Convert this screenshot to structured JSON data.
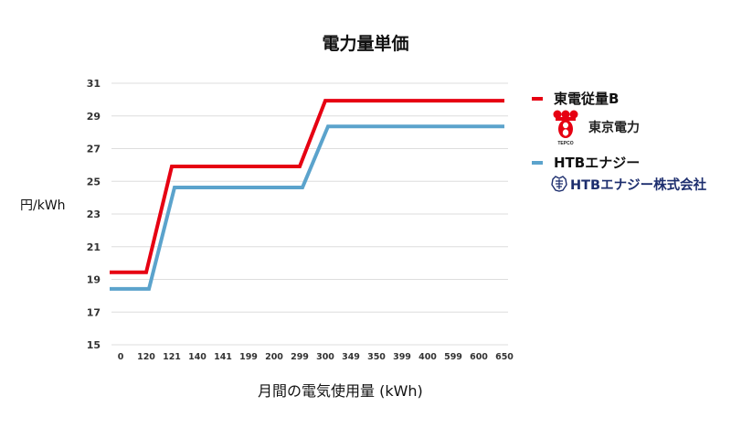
{
  "title": "電力量単価",
  "axes": {
    "ylabel": "円/kWh",
    "xlabel": "月間の電気使用量 (kWh)"
  },
  "legend": {
    "series1_label": "東電従量B",
    "series1_brand": "東京電力",
    "series1_brand_sub": "TEPCO",
    "series2_label": "HTBエナジー",
    "series2_brand": "HTBエナジー株式会社"
  },
  "colors": {
    "series1": "#e60012",
    "series2": "#5ba3cc",
    "grid": "#dddddd",
    "brand2": "#1d2e6e"
  },
  "chart_data": {
    "type": "line",
    "title": "電力量単価",
    "xlabel": "月間の電気使用量 (kWh)",
    "ylabel": "円/kWh",
    "categories": [
      "0",
      "120",
      "121",
      "140",
      "141",
      "199",
      "200",
      "299",
      "300",
      "349",
      "350",
      "399",
      "400",
      "599",
      "600",
      "650"
    ],
    "yticks": [
      15,
      17,
      19,
      21,
      23,
      25,
      27,
      29,
      31
    ],
    "ylim": [
      15,
      31
    ],
    "grid": true,
    "legend_position": "right",
    "series": [
      {
        "name": "東電従量B",
        "values": [
          19.43,
          19.43,
          25.91,
          25.91,
          25.91,
          25.91,
          25.91,
          25.91,
          29.93,
          29.93,
          29.93,
          29.93,
          29.93,
          29.93,
          29.93,
          29.93
        ]
      },
      {
        "name": "HTBエナジー",
        "values": [
          18.42,
          18.42,
          24.62,
          24.62,
          24.62,
          24.62,
          24.62,
          24.62,
          28.36,
          28.36,
          28.36,
          28.36,
          28.36,
          28.36,
          28.36,
          28.36
        ]
      }
    ]
  }
}
